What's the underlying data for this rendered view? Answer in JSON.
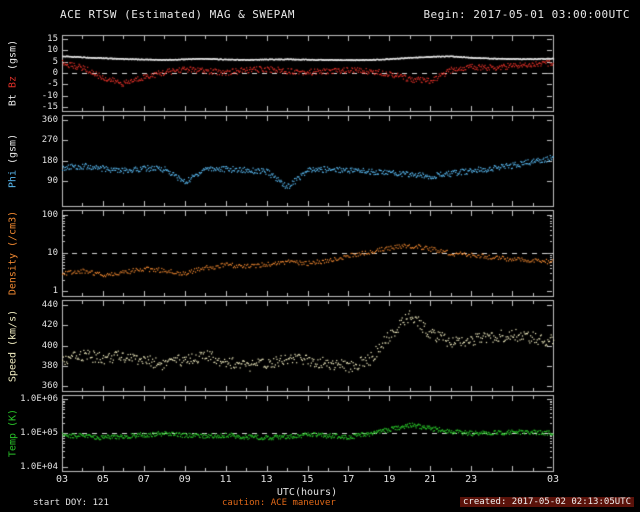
{
  "header": {
    "title": "ACE RTSW (Estimated) MAG & SWEPAM",
    "begin": "Begin: 2017-05-01 03:00:00UTC"
  },
  "footer": {
    "start_doy": "start DOY: 121",
    "caution": "caution: ACE maneuver",
    "created": "created: 2017-05-02 02:13:05UTC"
  },
  "x_axis": {
    "label": "UTC(hours)",
    "range": [
      3,
      27
    ],
    "tick_hours": [
      3,
      5,
      7,
      9,
      11,
      13,
      15,
      17,
      19,
      21,
      23,
      27
    ],
    "tick_labels": [
      "03",
      "05",
      "07",
      "09",
      "11",
      "13",
      "15",
      "17",
      "19",
      "21",
      "23",
      "03"
    ]
  },
  "colors": {
    "background": "#000000",
    "axis": "#c0c0c0",
    "bt": "#e8e8e8",
    "bz": "#e03028",
    "phi": "#58b8f0",
    "density": "#f08830",
    "speed": "#f0ecc0",
    "temp": "#28c028",
    "caution": "#e06818"
  },
  "chart_data": {
    "type": "scatter",
    "title": "ACE RTSW (Estimated) MAG & SWEPAM",
    "xlabel": "UTC(hours)",
    "x_range_hours": [
      3,
      27
    ],
    "grid": false,
    "legend": "none",
    "x_hours": [
      3,
      4,
      5,
      6,
      7,
      8,
      9,
      10,
      11,
      12,
      13,
      14,
      15,
      16,
      17,
      18,
      19,
      20,
      21,
      22,
      23,
      24,
      25,
      26,
      27
    ],
    "panels": [
      {
        "name": "magnetic-field",
        "scale": "linear",
        "ylim": [
          -15,
          15
        ],
        "dashed_at": 0,
        "ylabel_parts": [
          {
            "text": "Bt ",
            "color": "#e8e8e8"
          },
          {
            "text": "Bz",
            "color": "#e03028"
          },
          {
            "text": " (gsm)",
            "color": "#e8e8e8"
          }
        ],
        "yticks": [
          {
            "v": 15,
            "label": "15"
          },
          {
            "v": 10,
            "label": "10"
          },
          {
            "v": 5,
            "label": "5"
          },
          {
            "v": 0,
            "label": "0"
          },
          {
            "v": -5,
            "label": "-5"
          },
          {
            "v": -10,
            "label": "-10"
          },
          {
            "v": -15,
            "label": "-15"
          }
        ],
        "series": [
          {
            "name": "Bt",
            "color": "#e8e8e8",
            "noise": 0.2,
            "step": 0.02,
            "values": [
              7.6,
              7.2,
              6.8,
              6.4,
              6.2,
              6.0,
              6.3,
              6.5,
              6.2,
              6.0,
              6.2,
              6.3,
              6.1,
              6.0,
              5.9,
              6.0,
              6.4,
              7.0,
              7.4,
              7.6,
              7.0,
              6.6,
              6.4,
              6.4,
              6.6
            ]
          },
          {
            "name": "Bz",
            "color": "#e03028",
            "noise": 1.3,
            "step": 0.035,
            "values": [
              4.5,
              2.5,
              -2.0,
              -4.5,
              -1.5,
              0.5,
              2.0,
              1.0,
              0.5,
              1.5,
              2.0,
              1.2,
              0.6,
              1.0,
              1.5,
              1.0,
              0.0,
              -2.5,
              -3.5,
              1.5,
              3.0,
              2.6,
              3.4,
              4.2,
              4.6
            ]
          }
        ]
      },
      {
        "name": "phi",
        "scale": "linear",
        "ylim": [
          0,
          360
        ],
        "dashed_at": null,
        "ylabel_parts": [
          {
            "text": "Phi",
            "color": "#58b8f0"
          },
          {
            "text": " (gsm)",
            "color": "#e8e8e8"
          }
        ],
        "yticks": [
          {
            "v": 360,
            "label": "360"
          },
          {
            "v": 270,
            "label": "270"
          },
          {
            "v": 180,
            "label": "180"
          },
          {
            "v": 90,
            "label": "90"
          }
        ],
        "series": [
          {
            "name": "Phi",
            "color": "#58b8f0",
            "noise": 13,
            "step": 0.035,
            "values": [
              150,
              158,
              146,
              136,
              148,
              144,
              85,
              148,
              144,
              140,
              132,
              65,
              138,
              144,
              140,
              134,
              128,
              120,
              113,
              124,
              137,
              147,
              160,
              178,
              195
            ]
          }
        ]
      },
      {
        "name": "density",
        "scale": "log",
        "ylim": [
          1,
          100
        ],
        "dashed_at": 10,
        "ylabel_parts": [
          {
            "text": "Density (/cm3)",
            "color": "#f08830"
          }
        ],
        "yticks": [
          {
            "v": 100,
            "label": "100"
          },
          {
            "v": 10,
            "label": "10"
          },
          {
            "v": 1,
            "label": "1"
          }
        ],
        "series": [
          {
            "name": "Density",
            "color": "#f08830",
            "noise": 0.06,
            "step": 0.05,
            "values": [
              3.0,
              3.5,
              2.8,
              3.2,
              4.0,
              3.6,
              3.0,
              4.2,
              5.0,
              4.6,
              5.2,
              6.0,
              5.5,
              6.5,
              8.5,
              11.0,
              14.0,
              16.0,
              13.0,
              10.0,
              9.0,
              8.0,
              7.0,
              6.5,
              6.0
            ]
          }
        ]
      },
      {
        "name": "speed",
        "scale": "linear",
        "ylim": [
          360,
          440
        ],
        "dashed_at": null,
        "ylabel_parts": [
          {
            "text": "Speed (km/s)",
            "color": "#f0ecc0"
          }
        ],
        "yticks": [
          {
            "v": 440,
            "label": "440"
          },
          {
            "v": 420,
            "label": "420"
          },
          {
            "v": 400,
            "label": "400"
          },
          {
            "v": 380,
            "label": "380"
          },
          {
            "v": 360,
            "label": "360"
          }
        ],
        "series": [
          {
            "name": "Speed",
            "color": "#f0ecc0",
            "noise": 6,
            "step": 0.04,
            "values": [
              385,
              391,
              388,
              390,
              386,
              382,
              387,
              390,
              385,
              380,
              383,
              388,
              386,
              383,
              380,
              386,
              410,
              430,
              412,
              404,
              406,
              409,
              411,
              408,
              405
            ]
          }
        ]
      },
      {
        "name": "temperature",
        "scale": "log",
        "ylim": [
          10000,
          1000000
        ],
        "dashed_at": 100000,
        "ylabel_parts": [
          {
            "text": "Temp (K)",
            "color": "#28c028"
          }
        ],
        "yticks": [
          {
            "v": 1000000,
            "label": "1.0E+06"
          },
          {
            "v": 100000,
            "label": "1.0E+05"
          },
          {
            "v": 10000,
            "label": "1.0E+04"
          }
        ],
        "series": [
          {
            "name": "Temp",
            "color": "#28c028",
            "noise": 0.07,
            "step": 0.03,
            "values": [
              90000,
              85000,
              76000,
              82000,
              92000,
              100000,
              88000,
              84000,
              90000,
              80000,
              76000,
              82000,
              92000,
              86000,
              80000,
              95000,
              130000,
              180000,
              140000,
              115000,
              100000,
              105000,
              110000,
              108000,
              100000
            ]
          }
        ]
      }
    ]
  }
}
